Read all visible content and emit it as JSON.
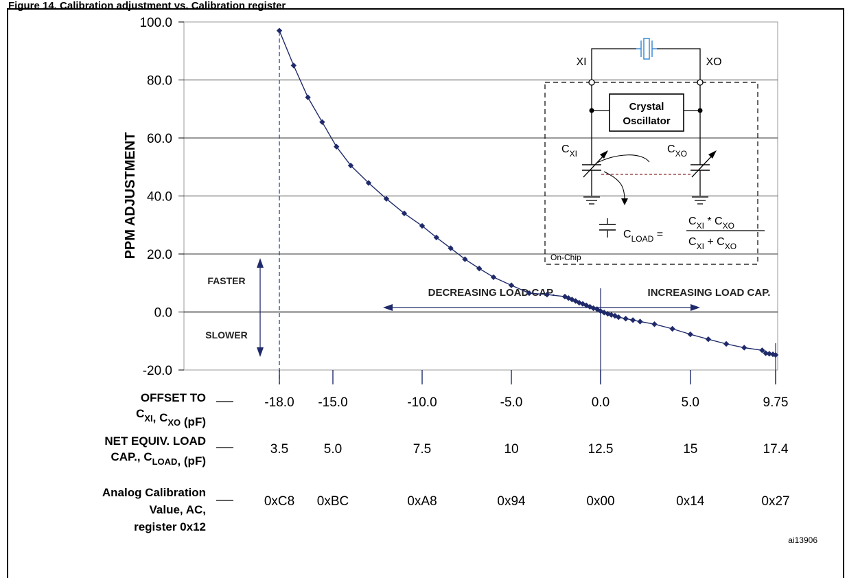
{
  "figure": {
    "cut_title": "Figure 14. Calibration adjustment vs. Calibration register",
    "ref_id": "ai13906"
  },
  "chart_data": {
    "type": "line",
    "title": "",
    "xlabel": "OFFSET TO C_XI, C_XO (pF)",
    "ylabel": "PPM ADJUSTMENT",
    "ylim": [
      -20,
      100
    ],
    "yticks": [
      "100.0",
      "80.0",
      "60.0",
      "40.0",
      "20.0",
      "0.0",
      "-20.0"
    ],
    "grid": "horizontal",
    "series": [
      {
        "name": "",
        "color": "#1f2a6b",
        "x": [
          -18.0,
          -17.2,
          -16.4,
          -15.6,
          -14.8,
          -14.0,
          -13.0,
          -12.0,
          -11.0,
          -10.0,
          -9.2,
          -8.4,
          -7.6,
          -6.8,
          -6.0,
          -5.0,
          -4.0,
          -3.0,
          -2.0,
          -1.8,
          -1.6,
          -1.4,
          -1.2,
          -1.0,
          -0.8,
          -0.6,
          -0.4,
          -0.2,
          0.0,
          0.2,
          0.4,
          0.6,
          0.8,
          1.0,
          1.4,
          1.8,
          2.2,
          3.0,
          4.0,
          5.0,
          6.0,
          7.0,
          8.0,
          9.0,
          9.2,
          9.4,
          9.6,
          9.75
        ],
        "y": [
          97.0,
          85.0,
          74.0,
          65.5,
          57.0,
          50.5,
          44.5,
          39.0,
          34.0,
          29.7,
          25.7,
          22.0,
          18.2,
          15.0,
          12.0,
          9.2,
          6.5,
          6.0,
          5.3,
          4.8,
          4.3,
          3.8,
          3.2,
          2.8,
          2.3,
          1.8,
          1.3,
          1.0,
          0.3,
          -0.2,
          -0.6,
          -1.0,
          -1.3,
          -1.8,
          -2.3,
          -2.8,
          -3.3,
          -4.2,
          -5.8,
          -7.7,
          -9.4,
          -11.0,
          -12.3,
          -13.2,
          -14.2,
          -14.4,
          -14.6,
          -14.8
        ]
      }
    ],
    "axis_rows": [
      {
        "label_lines": [
          "OFFSET TO",
          "C_XI, C_XO (pF)"
        ],
        "values": [
          "-18.0",
          "-15.0",
          "-10.0",
          "-5.0",
          "0.0",
          "5.0",
          "9.75"
        ]
      },
      {
        "label_lines": [
          "NET EQUIV. LOAD",
          "CAP., C_LOAD, (pF)"
        ],
        "values": [
          "3.5",
          "5.0",
          "7.5",
          "10",
          "12.5",
          "15",
          "17.4"
        ]
      },
      {
        "label_lines": [
          "Analog Calibration",
          "Value, AC,",
          "register 0x12"
        ],
        "values": [
          "0xC8",
          "0xBC",
          "0xA8",
          "0x94",
          "0x00",
          "0x14",
          "0x27"
        ]
      }
    ],
    "axis_row_x": [
      -18.0,
      -15.0,
      -10.0,
      -5.0,
      0.0,
      5.0,
      9.75
    ],
    "annotations": {
      "faster": "FASTER",
      "slower": "SLOWER",
      "decreasing": "DECREASING LOAD CAP.",
      "increasing": "INCREASING LOAD CAP."
    },
    "inset": {
      "xi": "XI",
      "xo": "XO",
      "osc_line1": "Crystal",
      "osc_line2": "Oscillator",
      "cxi": "C",
      "cxi_sub": "XI",
      "cxo": "C",
      "cxo_sub": "XO",
      "cload": "C",
      "cload_sub": "LOAD",
      "num_a": "C",
      "num_a_sub": "XI",
      "num_op": " * C",
      "num_b_sub": "XO",
      "den_a": "C",
      "den_a_sub": "XI",
      "den_op": " + C",
      "den_b_sub": "XO",
      "on_chip": "On-Chip"
    }
  }
}
